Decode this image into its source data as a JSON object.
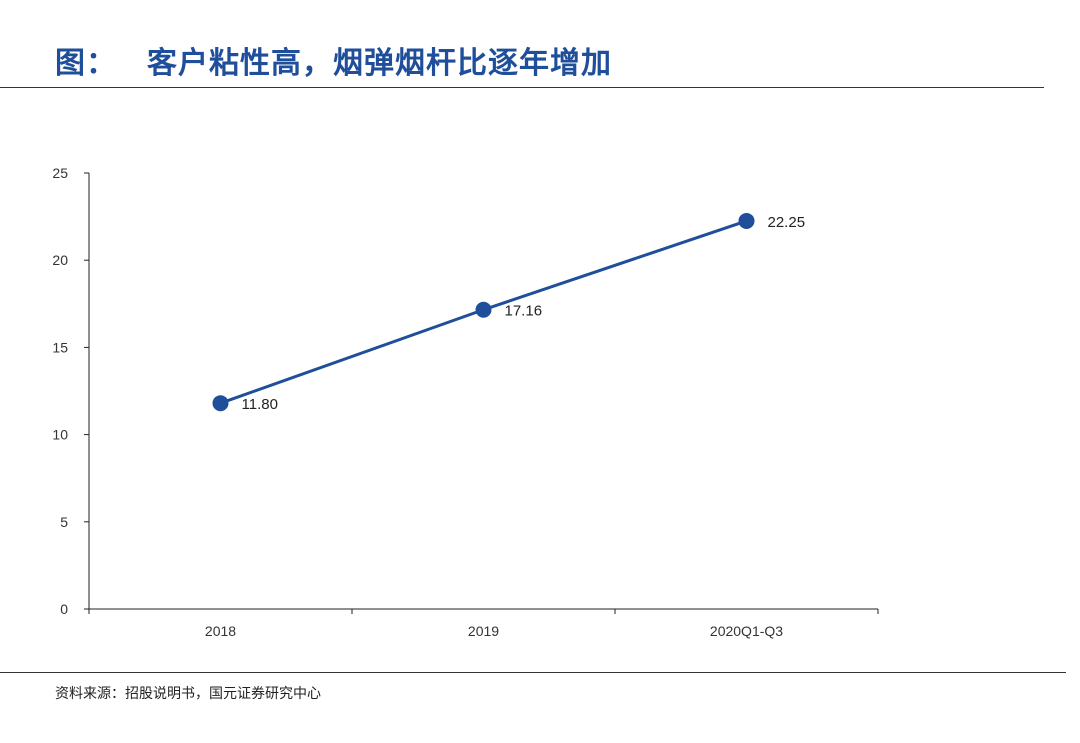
{
  "header": {
    "figure_label": "图：",
    "title_text": "客户粘性高，烟弹烟杆比逐年增加"
  },
  "footer": {
    "source": "资料来源：招股说明书，国元证券研究中心"
  },
  "colors": {
    "series": "#1f4e9a",
    "axis": "#222222",
    "title": "#1f4e9a"
  },
  "chart_data": {
    "type": "line",
    "title": "客户粘性高，烟弹烟杆比逐年增加",
    "xlabel": "",
    "ylabel": "",
    "categories": [
      "2018",
      "2019",
      "2020Q1-Q3"
    ],
    "series": [
      {
        "name": "烟弹烟杆比",
        "values": [
          11.8,
          17.16,
          22.25
        ],
        "data_labels": [
          "11.80",
          "17.16",
          "22.25"
        ]
      }
    ],
    "ylim": [
      0,
      25
    ],
    "yticks": [
      0,
      5,
      10,
      15,
      20,
      25
    ],
    "grid": false,
    "legend": "none"
  }
}
